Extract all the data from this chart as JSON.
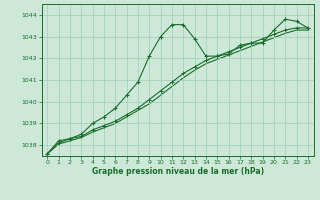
{
  "bg_color": "#cbe8d8",
  "grid_color": "#9ecfb8",
  "line_color": "#1a6e2e",
  "marker_color": "#1a6e2e",
  "xlabel": "Graphe pression niveau de la mer (hPa)",
  "xlabel_color": "#1a6e2e",
  "tick_color": "#1a6e2e",
  "ylim": [
    1037.5,
    1044.5
  ],
  "xlim": [
    -0.5,
    23.5
  ],
  "yticks": [
    1038,
    1039,
    1040,
    1041,
    1042,
    1043,
    1044
  ],
  "xticks": [
    0,
    1,
    2,
    3,
    4,
    5,
    6,
    7,
    8,
    9,
    10,
    11,
    12,
    13,
    14,
    15,
    16,
    17,
    18,
    19,
    20,
    21,
    22,
    23
  ],
  "series1_x": [
    0,
    1,
    2,
    3,
    4,
    5,
    6,
    7,
    8,
    9,
    10,
    11,
    12,
    13,
    14,
    15,
    16,
    17,
    18,
    19,
    20,
    21,
    22,
    23
  ],
  "series1_y": [
    1037.6,
    1038.2,
    1038.3,
    1038.5,
    1039.0,
    1039.3,
    1039.7,
    1040.3,
    1040.9,
    1042.1,
    1043.0,
    1043.55,
    1043.55,
    1042.9,
    1042.1,
    1042.1,
    1042.2,
    1042.6,
    1042.7,
    1042.7,
    1043.3,
    1043.8,
    1043.7,
    1043.4
  ],
  "series2_x": [
    0,
    1,
    2,
    3,
    4,
    5,
    6,
    7,
    8,
    9,
    10,
    11,
    12,
    13,
    14,
    15,
    16,
    17,
    18,
    19,
    20,
    21,
    22,
    23
  ],
  "series2_y": [
    1037.6,
    1038.1,
    1038.3,
    1038.4,
    1038.7,
    1038.9,
    1039.1,
    1039.4,
    1039.7,
    1040.1,
    1040.5,
    1040.9,
    1041.3,
    1041.6,
    1041.9,
    1042.1,
    1042.3,
    1042.5,
    1042.7,
    1042.9,
    1043.1,
    1043.3,
    1043.4,
    1043.4
  ],
  "series3_x": [
    0,
    1,
    2,
    3,
    4,
    5,
    6,
    7,
    8,
    9,
    10,
    11,
    12,
    13,
    14,
    15,
    16,
    17,
    18,
    19,
    20,
    21,
    22,
    23
  ],
  "series3_y": [
    1037.6,
    1038.05,
    1038.2,
    1038.35,
    1038.6,
    1038.8,
    1039.0,
    1039.3,
    1039.6,
    1039.9,
    1040.3,
    1040.7,
    1041.1,
    1041.45,
    1041.75,
    1041.95,
    1042.15,
    1042.35,
    1042.55,
    1042.75,
    1042.95,
    1043.15,
    1043.3,
    1043.3
  ]
}
